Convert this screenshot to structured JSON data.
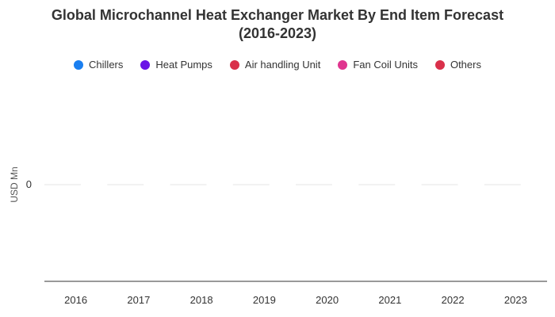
{
  "chart_data": {
    "type": "bar",
    "title_line1": "Global Microchannel Heat Exchanger Market By End Item Forecast",
    "title_line2": "(2016-2023)",
    "xlabel": "",
    "ylabel": "USD Mn",
    "categories": [
      "2016",
      "2017",
      "2018",
      "2019",
      "2020",
      "2021",
      "2022",
      "2023"
    ],
    "yticks": [
      "0"
    ],
    "legend_position": "top-center",
    "grid": true,
    "series": [
      {
        "name": "Chillers",
        "color": "#1a7ff0",
        "values": [
          0,
          0,
          0,
          0,
          0,
          0,
          0,
          0
        ]
      },
      {
        "name": "Heat Pumps",
        "color": "#6a12e6",
        "values": [
          0,
          0,
          0,
          0,
          0,
          0,
          0,
          0
        ]
      },
      {
        "name": "Air handling Unit",
        "color": "#d9304a",
        "values": [
          0,
          0,
          0,
          0,
          0,
          0,
          0,
          0
        ]
      },
      {
        "name": "Fan Coil Units",
        "color": "#e0358f",
        "values": [
          0,
          0,
          0,
          0,
          0,
          0,
          0,
          0
        ]
      },
      {
        "name": "Others",
        "color": "#d9304a",
        "values": [
          0,
          0,
          0,
          0,
          0,
          0,
          0,
          0
        ]
      }
    ]
  }
}
